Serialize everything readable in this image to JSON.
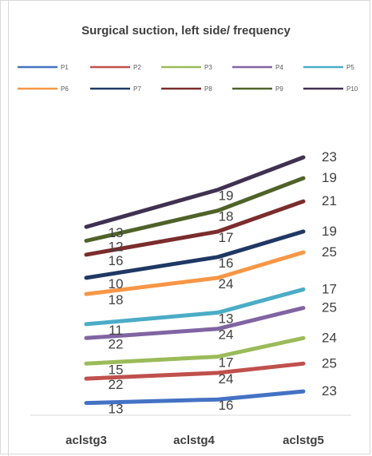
{
  "chart_data": {
    "type": "line",
    "title": "Surgical suction, left side/ frequency",
    "categories": [
      "aclstg3",
      "aclstg4",
      "aclstg5"
    ],
    "ylim": [
      0,
      9.8
    ],
    "legend_position": "top",
    "series": [
      {
        "name": "P1",
        "color": "#4472c4",
        "values": [
          0.6,
          0.75,
          1.1
        ],
        "labels": [
          "13",
          "16",
          "23"
        ]
      },
      {
        "name": "P2",
        "color": "#c0504d",
        "values": [
          1.65,
          1.9,
          2.3
        ],
        "labels": [
          "22",
          "24",
          "25"
        ]
      },
      {
        "name": "P3",
        "color": "#9bbb59",
        "values": [
          2.3,
          2.6,
          3.4
        ],
        "labels": [
          "15",
          "17",
          "24"
        ]
      },
      {
        "name": "P4",
        "color": "#8064a2",
        "values": [
          3.4,
          3.8,
          4.7
        ],
        "labels": [
          "22",
          "24",
          "25"
        ]
      },
      {
        "name": "P5",
        "color": "#4bacc6",
        "values": [
          4.0,
          4.5,
          5.5
        ],
        "labels": [
          "11",
          "13",
          "17"
        ]
      },
      {
        "name": "P6",
        "color": "#f79646",
        "values": [
          5.3,
          6.0,
          7.1
        ],
        "labels": [
          "18",
          "24",
          "25"
        ]
      },
      {
        "name": "P7",
        "color": "#1f3864",
        "values": [
          6.0,
          6.9,
          8.0
        ],
        "labels": [
          "10",
          "16",
          "19"
        ]
      },
      {
        "name": "P8",
        "color": "#7b2c2c",
        "values": [
          7.0,
          8.0,
          9.3
        ],
        "labels": [
          "16",
          "17",
          "21"
        ]
      },
      {
        "name": "P9",
        "color": "#4f6228",
        "values": [
          7.6,
          8.9,
          10.3
        ],
        "labels": [
          "12",
          "18",
          "19"
        ]
      },
      {
        "name": "P10",
        "color": "#403151",
        "values": [
          8.2,
          9.8,
          11.2
        ],
        "labels": [
          "13",
          "19",
          "23"
        ]
      }
    ]
  }
}
